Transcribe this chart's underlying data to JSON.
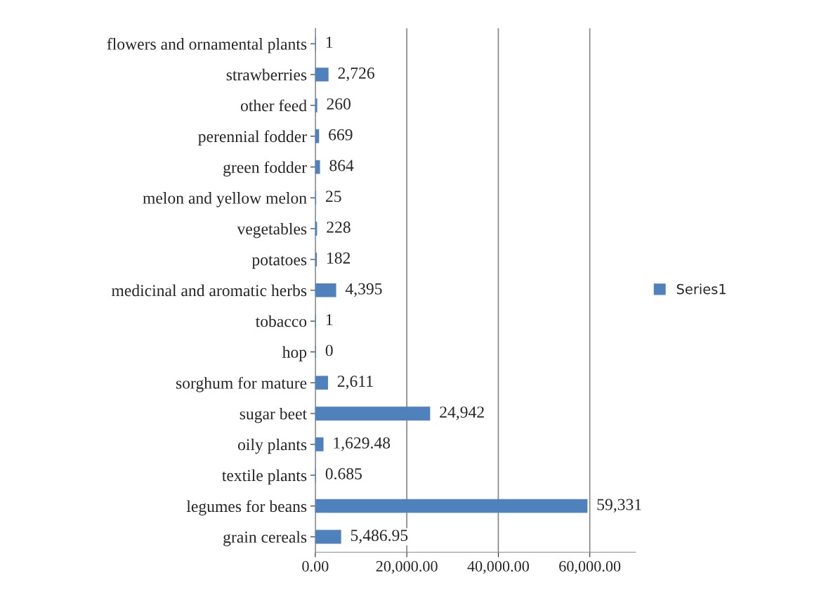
{
  "chart_data": {
    "type": "bar",
    "orientation": "horizontal",
    "categories": [
      "flowers and ornamental plants",
      "strawberries",
      "other feed",
      "perennial fodder",
      "green fodder",
      "melon and yellow melon",
      "vegetables",
      "potatoes",
      "medicinal and aromatic herbs",
      "tobacco",
      "hop",
      "sorghum for mature",
      "sugar beet",
      "oily plants",
      "textile plants",
      "legumes for beans",
      "grain cereals"
    ],
    "series": [
      {
        "name": "Series1",
        "color": "#4f81bd",
        "values": [
          1,
          2726,
          260,
          669,
          864,
          25,
          228,
          182,
          4395,
          1,
          0,
          2611,
          24942,
          1629.48,
          0.685,
          59331,
          5486.95
        ],
        "value_labels": [
          "1",
          "2,726",
          "260",
          "669",
          "864",
          "25",
          "228",
          "182",
          "4,395",
          "1",
          "0",
          "2,611",
          "24,942",
          "1,629.48",
          "0.685",
          "59,331",
          "5,486.95"
        ]
      }
    ],
    "xlim": [
      0,
      70000
    ],
    "xticks": [
      {
        "value": 0,
        "label": "0.00"
      },
      {
        "value": 20000,
        "label": "20,000.00"
      },
      {
        "value": 40000,
        "label": "40,000.00"
      },
      {
        "value": 60000,
        "label": "60,000.00"
      }
    ],
    "grid": "x",
    "legend": "right"
  }
}
